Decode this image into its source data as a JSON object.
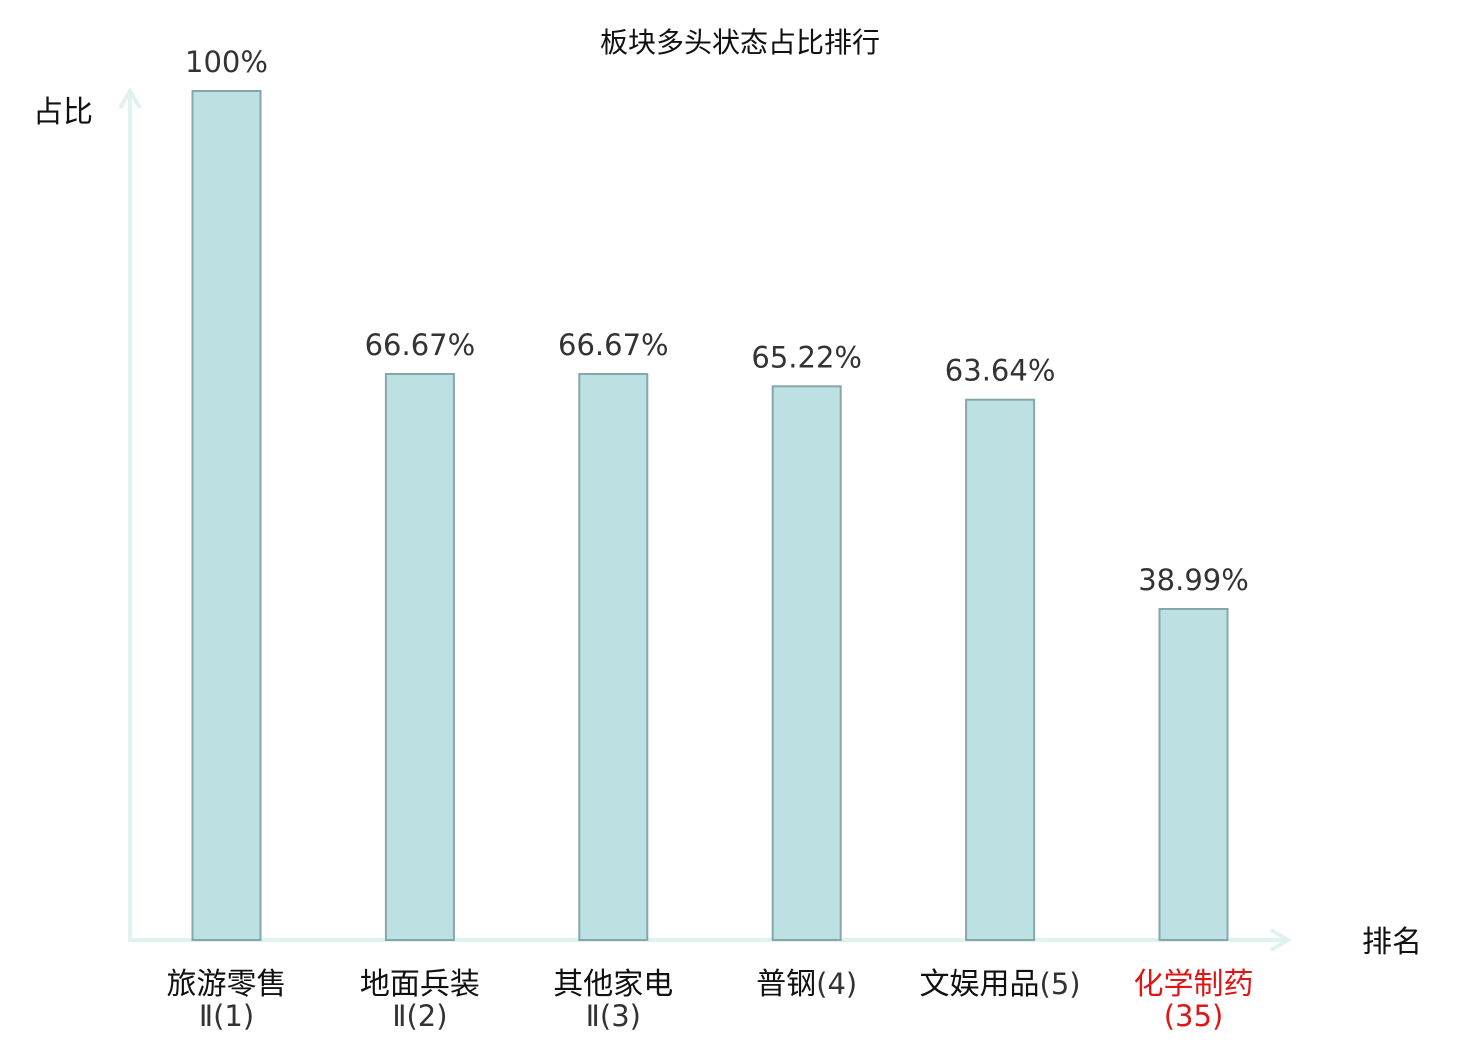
{
  "chart_data": {
    "type": "bar",
    "title": "板块多头状态占比排行",
    "ylabel": "占比",
    "xlabel": "排名",
    "ylim": [
      0,
      100
    ],
    "grid": false,
    "categories": [
      {
        "name": "旅游零售",
        "rank": "Ⅱ(1)",
        "highlight": false
      },
      {
        "name": "地面兵装",
        "rank": "Ⅱ(2)",
        "highlight": false
      },
      {
        "name": "其他家电",
        "rank": "Ⅱ(3)",
        "highlight": false
      },
      {
        "name": "普钢",
        "rank": "(4)",
        "highlight": false
      },
      {
        "name": "文娱用品",
        "rank": "(5)",
        "highlight": false
      },
      {
        "name": "化学制药",
        "rank": "(35)",
        "highlight": true
      }
    ],
    "values": [
      100,
      66.67,
      66.67,
      65.22,
      63.64,
      38.99
    ],
    "value_labels": [
      "100%",
      "66.67%",
      "66.67%",
      "65.22%",
      "63.64%",
      "38.99%"
    ]
  },
  "colors": {
    "bar_fill": "#bde0e3",
    "bar_stroke": "#86a7aa",
    "axis": "#dff2ef",
    "text": "#111111",
    "rank_text": "#333333",
    "highlight": "#e01515"
  }
}
